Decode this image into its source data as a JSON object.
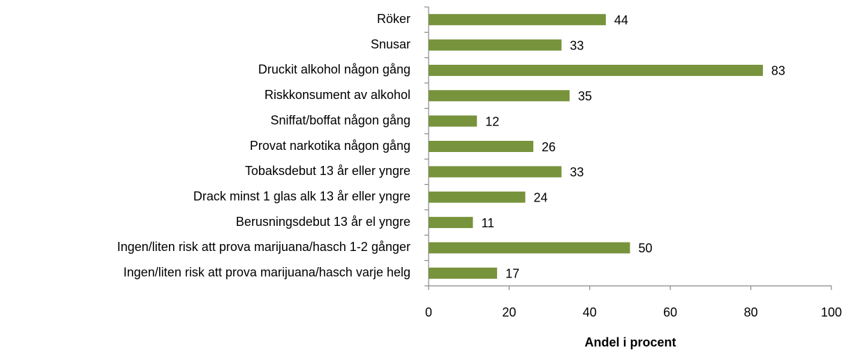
{
  "chart_data": {
    "type": "bar",
    "orientation": "horizontal",
    "categories": [
      "Röker",
      "Snusar",
      "Druckit alkohol någon gång",
      "Riskkonsument av alkohol",
      "Sniffat/boffat någon gång",
      "Provat narkotika någon gång",
      "Tobaksdebut 13 år eller yngre",
      "Drack minst 1 glas alk 13 år eller yngre",
      "Berusningsdebut 13 år el yngre",
      "Ingen/liten risk att prova marijuana/hasch 1-2 gånger",
      "Ingen/liten risk att prova marijuana/hasch varje helg"
    ],
    "values": [
      44,
      33,
      83,
      35,
      12,
      26,
      33,
      24,
      11,
      50,
      17
    ],
    "color": "#77933c",
    "xlabel": "Andel i procent",
    "xlim": [
      0,
      100
    ],
    "xticks": [
      0,
      20,
      40,
      60,
      80,
      100
    ],
    "grid": false
  }
}
